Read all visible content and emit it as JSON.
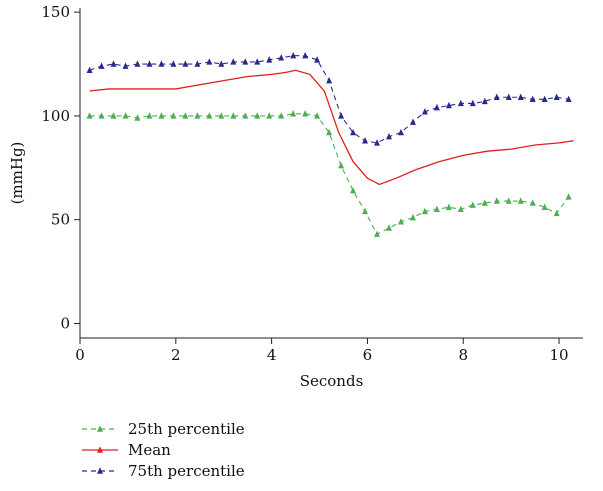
{
  "chart_data": {
    "type": "line",
    "title": "",
    "xlabel": "Seconds",
    "ylabel": "(mmHg)",
    "xlim": [
      0,
      10.5
    ],
    "ylim": [
      -7,
      152
    ],
    "xticks": [
      0,
      2,
      4,
      6,
      8,
      10
    ],
    "yticks": [
      0,
      50,
      100,
      150
    ],
    "grid": false,
    "legend_position": "bottom-left",
    "series": [
      {
        "name": "25th percentile",
        "color": "#4caf50",
        "line_style": "dashed",
        "marker": "triangle",
        "x": [
          0.2,
          0.45,
          0.7,
          0.95,
          1.2,
          1.45,
          1.7,
          1.95,
          2.2,
          2.45,
          2.7,
          2.95,
          3.2,
          3.45,
          3.7,
          3.95,
          4.2,
          4.45,
          4.7,
          4.95,
          5.2,
          5.45,
          5.7,
          5.95,
          6.2,
          6.45,
          6.7,
          6.95,
          7.2,
          7.45,
          7.7,
          7.95,
          8.2,
          8.45,
          8.7,
          8.95,
          9.2,
          9.45,
          9.7,
          9.95,
          10.2
        ],
        "y": [
          100,
          100,
          100,
          100,
          99,
          100,
          100,
          100,
          100,
          100,
          100,
          100,
          100,
          100,
          100,
          100,
          100,
          101,
          101,
          100,
          92,
          76,
          64,
          54,
          43,
          46,
          49,
          51,
          54,
          55,
          56,
          55,
          57,
          58,
          59,
          59,
          59,
          58,
          56,
          53,
          61
        ]
      },
      {
        "name": "Mean",
        "color": "#e02020",
        "line_style": "solid",
        "marker": "none",
        "x": [
          0.2,
          0.6,
          1.0,
          1.5,
          2.0,
          2.5,
          3.0,
          3.5,
          4.0,
          4.3,
          4.5,
          4.8,
          5.1,
          5.4,
          5.7,
          6.0,
          6.25,
          6.6,
          7.0,
          7.5,
          8.0,
          8.5,
          9.0,
          9.5,
          10.0,
          10.3
        ],
        "y": [
          112,
          113,
          113,
          113,
          113,
          115,
          117,
          119,
          120,
          121,
          122,
          120,
          112,
          92,
          78,
          70,
          67,
          70,
          74,
          78,
          81,
          83,
          84,
          86,
          87,
          88
        ]
      },
      {
        "name": "75th percentile",
        "color": "#2a2a8c",
        "line_style": "dashed",
        "marker": "triangle",
        "x": [
          0.2,
          0.45,
          0.7,
          0.95,
          1.2,
          1.45,
          1.7,
          1.95,
          2.2,
          2.45,
          2.7,
          2.95,
          3.2,
          3.45,
          3.7,
          3.95,
          4.2,
          4.45,
          4.7,
          4.95,
          5.2,
          5.45,
          5.7,
          5.95,
          6.2,
          6.45,
          6.7,
          6.95,
          7.2,
          7.45,
          7.7,
          7.95,
          8.2,
          8.45,
          8.7,
          8.95,
          9.2,
          9.45,
          9.7,
          9.95,
          10.2
        ],
        "y": [
          122,
          124,
          125,
          124,
          125,
          125,
          125,
          125,
          125,
          125,
          126,
          125,
          126,
          126,
          126,
          127,
          128,
          129,
          129,
          127,
          117,
          100,
          92,
          88,
          87,
          90,
          92,
          97,
          102,
          104,
          105,
          106,
          106,
          107,
          109,
          109,
          109,
          108,
          108,
          109,
          108
        ]
      }
    ]
  }
}
